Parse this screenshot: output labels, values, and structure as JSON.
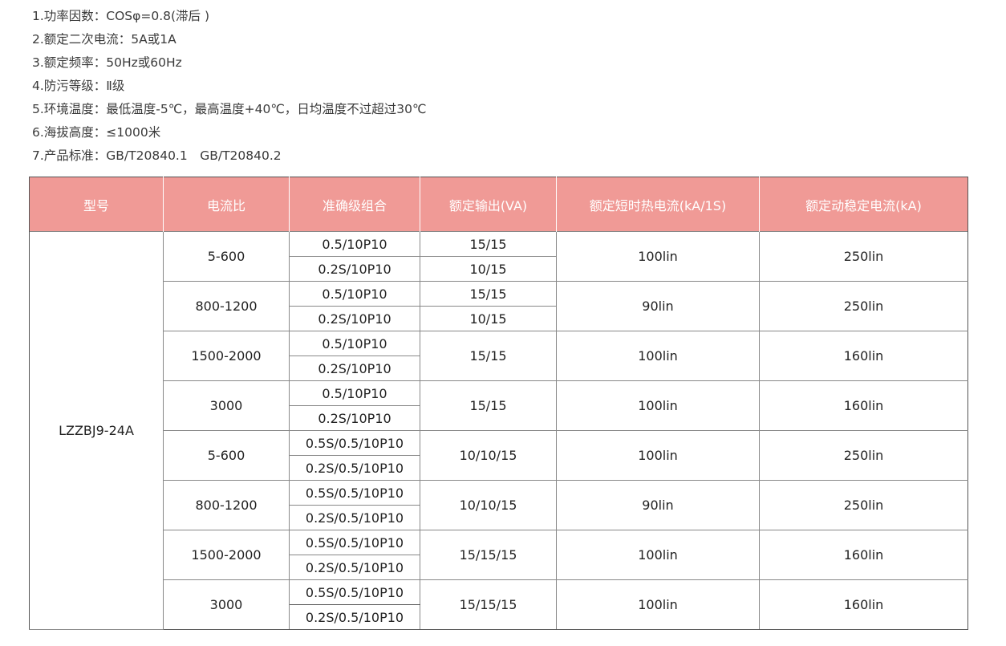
{
  "specs": [
    "1.功率因数：COSφ=0.8(滞后 )",
    "2.额定二次电流：5A或1A",
    "3.额定频率：50Hz或60Hz",
    "4.防污等级：Ⅱ级",
    "5.环境温度：最低温度-5℃，最高温度+40℃，日均温度不过超过30℃",
    "6.海拔高度：≤1000米",
    "7.产品标准：GB/T20840.1　GB/T20840.2"
  ],
  "colors": {
    "header_bg": "#f09a96",
    "header_text": "#ffffff"
  },
  "table": {
    "headers": [
      "型号",
      "电流比",
      "准确级组合",
      "额定输出(VA)",
      "额定短时热电流(kA/1S)",
      "额定动稳定电流(kA)"
    ],
    "model": "LZZBJ9-24A",
    "groups": [
      {
        "ratio": "5-600",
        "accuracy": [
          "0.5/10P10",
          "0.2S/10P10"
        ],
        "output": [
          "15/15",
          "10/15"
        ],
        "thermal": "100lin",
        "dynamic": "250lin"
      },
      {
        "ratio": "800-1200",
        "accuracy": [
          "0.5/10P10",
          "0.2S/10P10"
        ],
        "output": [
          "15/15",
          "10/15"
        ],
        "thermal": "90lin",
        "dynamic": "250lin"
      },
      {
        "ratio": "1500-2000",
        "accuracy": [
          "0.5/10P10",
          "0.2S/10P10"
        ],
        "output": "15/15",
        "thermal": "100lin",
        "dynamic": "160lin"
      },
      {
        "ratio": "3000",
        "accuracy": [
          "0.5/10P10",
          "0.2S/10P10"
        ],
        "output": "15/15",
        "thermal": "100lin",
        "dynamic": "160lin"
      },
      {
        "ratio": "5-600",
        "accuracy": [
          "0.5S/0.5/10P10",
          "0.2S/0.5/10P10"
        ],
        "output": "10/10/15",
        "thermal": "100lin",
        "dynamic": "250lin"
      },
      {
        "ratio": "800-1200",
        "accuracy": [
          "0.5S/0.5/10P10",
          "0.2S/0.5/10P10"
        ],
        "output": "10/10/15",
        "thermal": "90lin",
        "dynamic": "250lin"
      },
      {
        "ratio": "1500-2000",
        "accuracy": [
          "0.5S/0.5/10P10",
          "0.2S/0.5/10P10"
        ],
        "output": "15/15/15",
        "thermal": "100lin",
        "dynamic": "160lin"
      },
      {
        "ratio": "3000",
        "accuracy": [
          "0.5S/0.5/10P10",
          "0.2S/0.5/10P10"
        ],
        "output": "15/15/15",
        "thermal": "100lin",
        "dynamic": "160lin"
      }
    ]
  }
}
